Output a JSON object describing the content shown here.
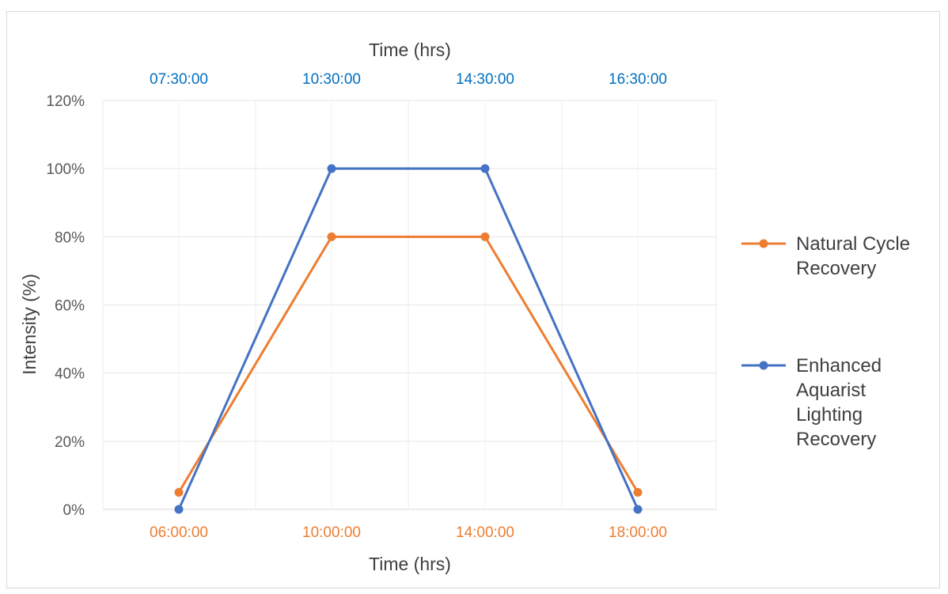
{
  "chart_data": {
    "type": "line",
    "top_axis": {
      "title": "Time (hrs)",
      "tick_labels": [
        "07:30:00",
        "10:30:00",
        "14:30:00",
        "16:30:00"
      ],
      "color": "#0070c0"
    },
    "bottom_axis": {
      "title": "Time (hrs)",
      "tick_labels": [
        "06:00:00",
        "10:00:00",
        "14:00:00",
        "18:00:00"
      ],
      "color": "#ed7d31"
    },
    "ylabel": "Intensity (%)",
    "ylim": [
      0,
      120
    ],
    "y_ticks": [
      "0%",
      "20%",
      "40%",
      "60%",
      "80%",
      "100%",
      "120%"
    ],
    "grid": true,
    "legend_position": "right",
    "series": [
      {
        "name": "Natural Cycle Recovery",
        "color": "#ed7d31",
        "x": [
          "06:00:00",
          "10:00:00",
          "14:00:00",
          "18:00:00"
        ],
        "values": [
          5,
          80,
          80,
          5
        ]
      },
      {
        "name": "Enhanced Aquarist Lighting Recovery",
        "color": "#4472c4",
        "x": [
          "07:30:00",
          "10:30:00",
          "14:30:00",
          "16:30:00"
        ],
        "values": [
          0,
          100,
          100,
          0
        ]
      }
    ]
  }
}
